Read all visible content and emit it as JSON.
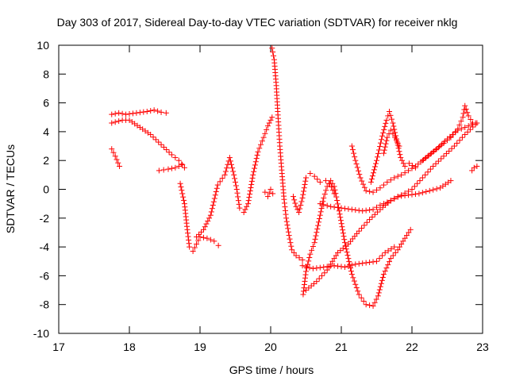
{
  "chart_data": {
    "type": "scatter",
    "title": "Day 303 of 2017, Sidereal Day-to-day VTEC variation (SDTVAR) for receiver nklg",
    "xlabel": "GPS time / hours",
    "ylabel": "SDTVAR / TECUs",
    "xlim": [
      17,
      23
    ],
    "ylim": [
      -10,
      10
    ],
    "x_ticks": [
      17,
      18,
      19,
      20,
      21,
      22,
      23
    ],
    "y_ticks": [
      -10,
      -8,
      -6,
      -4,
      -2,
      0,
      2,
      4,
      6,
      8,
      10
    ],
    "x_tick_labels": [
      "17",
      "18",
      "19",
      "20",
      "21",
      "22",
      "23"
    ],
    "y_tick_labels": [
      "-10",
      "-8",
      "-6",
      "-4",
      "-2",
      "0",
      "2",
      "4",
      "6",
      "8",
      "10"
    ],
    "grid": false,
    "marker": "+",
    "marker_color": "#ff0000",
    "series": [
      {
        "values": [
          {
            "x": 17.75,
            "y": 5.2
          },
          {
            "x": 17.85,
            "y": 5.3
          },
          {
            "x": 17.95,
            "y": 5.2
          },
          {
            "x": 18.1,
            "y": 5.3
          },
          {
            "x": 18.25,
            "y": 5.4
          },
          {
            "x": 18.35,
            "y": 5.5
          },
          {
            "x": 18.45,
            "y": 5.35
          },
          {
            "x": 18.52,
            "y": 5.3
          }
        ]
      },
      {
        "values": [
          {
            "x": 17.75,
            "y": 4.6
          },
          {
            "x": 17.9,
            "y": 4.8
          },
          {
            "x": 18.0,
            "y": 4.8
          },
          {
            "x": 18.15,
            "y": 4.3
          },
          {
            "x": 18.3,
            "y": 3.8
          },
          {
            "x": 18.45,
            "y": 3.1
          },
          {
            "x": 18.6,
            "y": 2.4
          },
          {
            "x": 18.7,
            "y": 2.0
          },
          {
            "x": 18.78,
            "y": 1.5
          }
        ]
      },
      {
        "values": [
          {
            "x": 17.75,
            "y": 2.8
          },
          {
            "x": 17.8,
            "y": 2.3
          },
          {
            "x": 17.86,
            "y": 1.6
          }
        ]
      },
      {
        "values": [
          {
            "x": 18.42,
            "y": 1.3
          },
          {
            "x": 18.55,
            "y": 1.4
          },
          {
            "x": 18.65,
            "y": 1.5
          },
          {
            "x": 18.75,
            "y": 1.7
          }
        ]
      },
      {
        "values": [
          {
            "x": 18.72,
            "y": 0.4
          },
          {
            "x": 18.78,
            "y": -1.0
          },
          {
            "x": 18.82,
            "y": -2.8
          },
          {
            "x": 18.85,
            "y": -4.0
          },
          {
            "x": 18.9,
            "y": -4.3
          },
          {
            "x": 18.95,
            "y": -3.8
          },
          {
            "x": 19.0,
            "y": -3.3
          },
          {
            "x": 19.1,
            "y": -3.4
          },
          {
            "x": 19.2,
            "y": -3.6
          },
          {
            "x": 19.26,
            "y": -3.9
          }
        ]
      },
      {
        "values": [
          {
            "x": 18.95,
            "y": -3.3
          },
          {
            "x": 19.05,
            "y": -2.8
          },
          {
            "x": 19.15,
            "y": -1.8
          },
          {
            "x": 19.25,
            "y": 0.3
          },
          {
            "x": 19.35,
            "y": 1.0
          },
          {
            "x": 19.42,
            "y": 2.2
          },
          {
            "x": 19.48,
            "y": 1.0
          },
          {
            "x": 19.52,
            "y": 0.0
          },
          {
            "x": 19.56,
            "y": -1.3
          },
          {
            "x": 19.62,
            "y": -1.6
          },
          {
            "x": 19.68,
            "y": -1.0
          },
          {
            "x": 19.75,
            "y": 1.0
          },
          {
            "x": 19.82,
            "y": 2.6
          },
          {
            "x": 19.9,
            "y": 3.6
          },
          {
            "x": 19.96,
            "y": 4.4
          },
          {
            "x": 20.02,
            "y": 5.0
          }
        ]
      },
      {
        "values": [
          {
            "x": 19.92,
            "y": -0.2
          },
          {
            "x": 19.96,
            "y": -0.5
          },
          {
            "x": 20.0,
            "y": 0.0
          },
          {
            "x": 20.03,
            "y": -0.3
          }
        ]
      },
      {
        "values": [
          {
            "x": 20.02,
            "y": 9.8
          },
          {
            "x": 20.05,
            "y": 9.0
          },
          {
            "x": 20.08,
            "y": 7.2
          },
          {
            "x": 20.1,
            "y": 5.4
          },
          {
            "x": 20.13,
            "y": 3.0
          },
          {
            "x": 20.16,
            "y": 1.1
          },
          {
            "x": 20.19,
            "y": -0.7
          },
          {
            "x": 20.22,
            "y": -2.0
          },
          {
            "x": 20.26,
            "y": -3.2
          },
          {
            "x": 20.3,
            "y": -4.2
          },
          {
            "x": 20.36,
            "y": -4.6
          },
          {
            "x": 20.45,
            "y": -4.9
          }
        ]
      },
      {
        "values": [
          {
            "x": 20.32,
            "y": -0.5
          },
          {
            "x": 20.36,
            "y": -1.2
          },
          {
            "x": 20.4,
            "y": -1.6
          },
          {
            "x": 20.45,
            "y": -0.6
          },
          {
            "x": 20.5,
            "y": 0.8
          },
          {
            "x": 20.56,
            "y": 1.1
          },
          {
            "x": 20.62,
            "y": 0.9
          },
          {
            "x": 20.7,
            "y": 0.5
          },
          {
            "x": 20.78,
            "y": 0.6
          },
          {
            "x": 20.84,
            "y": 0.4
          },
          {
            "x": 20.9,
            "y": -0.3
          }
        ]
      },
      {
        "values": [
          {
            "x": 20.46,
            "y": -7.3
          },
          {
            "x": 20.5,
            "y": -5.7
          },
          {
            "x": 20.56,
            "y": -4.5
          },
          {
            "x": 20.62,
            "y": -3.7
          },
          {
            "x": 20.7,
            "y": -1.8
          },
          {
            "x": 20.75,
            "y": -0.6
          },
          {
            "x": 20.8,
            "y": 0.2
          },
          {
            "x": 20.85,
            "y": 0.6
          },
          {
            "x": 20.9,
            "y": 0.2
          },
          {
            "x": 20.97,
            "y": -1.5
          },
          {
            "x": 21.05,
            "y": -3.7
          },
          {
            "x": 21.15,
            "y": -5.9
          },
          {
            "x": 21.25,
            "y": -7.3
          },
          {
            "x": 21.35,
            "y": -8.0
          },
          {
            "x": 21.45,
            "y": -8.1
          },
          {
            "x": 21.52,
            "y": -7.4
          },
          {
            "x": 21.6,
            "y": -5.9
          },
          {
            "x": 21.7,
            "y": -4.8
          },
          {
            "x": 21.8,
            "y": -4.2
          },
          {
            "x": 21.9,
            "y": -3.4
          },
          {
            "x": 21.98,
            "y": -2.8
          }
        ]
      },
      {
        "values": [
          {
            "x": 20.45,
            "y": -5.3
          },
          {
            "x": 20.6,
            "y": -5.5
          },
          {
            "x": 20.75,
            "y": -5.4
          },
          {
            "x": 20.9,
            "y": -5.3
          },
          {
            "x": 21.05,
            "y": -5.4
          },
          {
            "x": 21.2,
            "y": -5.2
          },
          {
            "x": 21.35,
            "y": -5.1
          },
          {
            "x": 21.5,
            "y": -5.0
          },
          {
            "x": 21.62,
            "y": -4.4
          },
          {
            "x": 21.75,
            "y": -4.0
          }
        ]
      },
      {
        "values": [
          {
            "x": 20.5,
            "y": -7.0
          },
          {
            "x": 20.65,
            "y": -6.4
          },
          {
            "x": 20.8,
            "y": -5.6
          },
          {
            "x": 20.95,
            "y": -4.4
          },
          {
            "x": 21.1,
            "y": -3.8
          },
          {
            "x": 21.25,
            "y": -2.9
          },
          {
            "x": 21.4,
            "y": -2.1
          },
          {
            "x": 21.55,
            "y": -1.4
          },
          {
            "x": 21.7,
            "y": -0.8
          },
          {
            "x": 21.85,
            "y": -0.4
          },
          {
            "x": 22.0,
            "y": 0.0
          },
          {
            "x": 22.15,
            "y": 0.8
          },
          {
            "x": 22.3,
            "y": 1.6
          },
          {
            "x": 22.45,
            "y": 2.3
          },
          {
            "x": 22.6,
            "y": 3.0
          },
          {
            "x": 22.75,
            "y": 3.8
          },
          {
            "x": 22.9,
            "y": 4.5
          }
        ]
      },
      {
        "values": [
          {
            "x": 20.7,
            "y": -1.0
          },
          {
            "x": 20.85,
            "y": -1.2
          },
          {
            "x": 21.0,
            "y": -1.3
          },
          {
            "x": 21.15,
            "y": -1.4
          },
          {
            "x": 21.3,
            "y": -1.5
          },
          {
            "x": 21.45,
            "y": -1.4
          },
          {
            "x": 21.55,
            "y": -1.1
          },
          {
            "x": 21.65,
            "y": -0.9
          },
          {
            "x": 21.8,
            "y": -0.5
          },
          {
            "x": 21.95,
            "y": -0.4
          },
          {
            "x": 22.1,
            "y": -0.3
          },
          {
            "x": 22.25,
            "y": -0.1
          },
          {
            "x": 22.4,
            "y": 0.1
          },
          {
            "x": 22.55,
            "y": 0.6
          }
        ]
      },
      {
        "values": [
          {
            "x": 21.15,
            "y": 3.0
          },
          {
            "x": 21.2,
            "y": 2.0
          },
          {
            "x": 21.27,
            "y": 0.8
          },
          {
            "x": 21.35,
            "y": -0.1
          },
          {
            "x": 21.45,
            "y": -0.2
          },
          {
            "x": 21.55,
            "y": 0.1
          },
          {
            "x": 21.65,
            "y": 0.5
          },
          {
            "x": 21.75,
            "y": 0.8
          },
          {
            "x": 21.85,
            "y": 1.0
          },
          {
            "x": 21.95,
            "y": 1.3
          },
          {
            "x": 22.05,
            "y": 1.6
          },
          {
            "x": 22.2,
            "y": 2.2
          },
          {
            "x": 22.35,
            "y": 2.8
          },
          {
            "x": 22.5,
            "y": 3.5
          },
          {
            "x": 22.65,
            "y": 4.1
          },
          {
            "x": 22.8,
            "y": 4.4
          },
          {
            "x": 22.9,
            "y": 4.6
          }
        ]
      },
      {
        "values": [
          {
            "x": 21.42,
            "y": 0.5
          },
          {
            "x": 21.5,
            "y": 2.0
          },
          {
            "x": 21.58,
            "y": 3.7
          },
          {
            "x": 21.64,
            "y": 4.8
          },
          {
            "x": 21.68,
            "y": 5.4
          },
          {
            "x": 21.73,
            "y": 4.6
          },
          {
            "x": 21.78,
            "y": 3.5
          },
          {
            "x": 21.84,
            "y": 2.2
          },
          {
            "x": 21.9,
            "y": 1.6
          },
          {
            "x": 21.96,
            "y": 1.8
          },
          {
            "x": 22.05,
            "y": 1.5
          }
        ]
      },
      {
        "values": [
          {
            "x": 21.6,
            "y": 2.5
          },
          {
            "x": 21.65,
            "y": 3.6
          },
          {
            "x": 21.7,
            "y": 4.1
          },
          {
            "x": 21.76,
            "y": 3.6
          },
          {
            "x": 21.82,
            "y": 3.0
          }
        ]
      },
      {
        "values": [
          {
            "x": 22.15,
            "y": 2.0
          },
          {
            "x": 22.3,
            "y": 2.6
          },
          {
            "x": 22.45,
            "y": 3.2
          },
          {
            "x": 22.55,
            "y": 3.6
          },
          {
            "x": 22.65,
            "y": 4.2
          },
          {
            "x": 22.72,
            "y": 5.0
          },
          {
            "x": 22.75,
            "y": 5.8
          },
          {
            "x": 22.8,
            "y": 5.1
          },
          {
            "x": 22.86,
            "y": 4.6
          },
          {
            "x": 22.92,
            "y": 4.6
          }
        ]
      },
      {
        "values": [
          {
            "x": 22.85,
            "y": 1.3
          },
          {
            "x": 22.88,
            "y": 1.5
          },
          {
            "x": 22.92,
            "y": 1.6
          }
        ]
      }
    ]
  }
}
